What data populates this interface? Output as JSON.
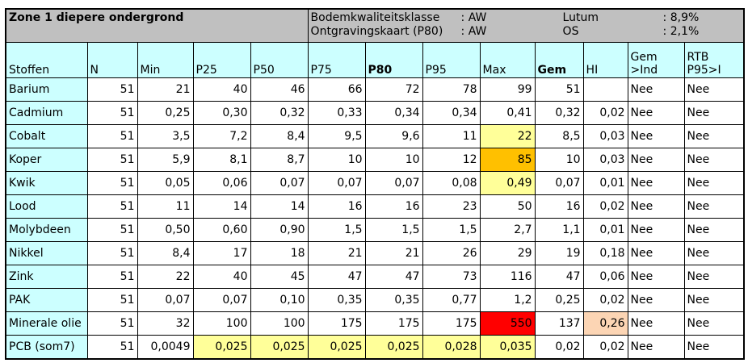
{
  "title": "Zone 1 diepere ondergrond",
  "meta": [
    {
      "label": "Bodemkwaliteitsklasse",
      "value": ": AW",
      "label2": "Lutum",
      "value2": ": 8,9%"
    },
    {
      "label": "Ontgravingskaart (P80)",
      "value": ": AW",
      "label2": "OS",
      "value2": ": 2,1%"
    }
  ],
  "headers": [
    "Stoffen",
    "N",
    "Min",
    "P25",
    "P50",
    "P75",
    "P80",
    "P95",
    "Max",
    "Gem",
    "HI",
    "Gem\n>Ind",
    "RTB\nP95>I"
  ],
  "rows": [
    [
      "Barium",
      "51",
      "21",
      "40",
      "46",
      "66",
      "72",
      "78",
      "99",
      "51",
      "",
      "Nee",
      "Nee"
    ],
    [
      "Cadmium",
      "51",
      "0,25",
      "0,30",
      "0,32",
      "0,33",
      "0,34",
      "0,34",
      "0,41",
      "0,32",
      "0,02",
      "Nee",
      "Nee"
    ],
    [
      "Cobalt",
      "51",
      "3,5",
      "7,2",
      "8,4",
      "9,5",
      "9,6",
      "11",
      "22",
      "8,5",
      "0,03",
      "Nee",
      "Nee"
    ],
    [
      "Koper",
      "51",
      "5,9",
      "8,1",
      "8,7",
      "10",
      "10",
      "12",
      "85",
      "10",
      "0,03",
      "Nee",
      "Nee"
    ],
    [
      "Kwik",
      "51",
      "0,05",
      "0,06",
      "0,07",
      "0,07",
      "0,07",
      "0,08",
      "0,49",
      "0,07",
      "0,01",
      "Nee",
      "Nee"
    ],
    [
      "Lood",
      "51",
      "11",
      "14",
      "14",
      "16",
      "16",
      "23",
      "50",
      "16",
      "0,02",
      "Nee",
      "Nee"
    ],
    [
      "Molybdeen",
      "51",
      "0,50",
      "0,60",
      "0,90",
      "1,5",
      "1,5",
      "1,5",
      "2,7",
      "1,1",
      "0,01",
      "Nee",
      "Nee"
    ],
    [
      "Nikkel",
      "51",
      "8,4",
      "17",
      "18",
      "21",
      "21",
      "26",
      "29",
      "19",
      "0,18",
      "Nee",
      "Nee"
    ],
    [
      "Zink",
      "51",
      "22",
      "40",
      "45",
      "47",
      "47",
      "73",
      "116",
      "47",
      "0,06",
      "Nee",
      "Nee"
    ],
    [
      "PAK",
      "51",
      "0,07",
      "0,07",
      "0,10",
      "0,35",
      "0,35",
      "0,77",
      "1,2",
      "0,25",
      "0,02",
      "Nee",
      "Nee"
    ],
    [
      "Minerale olie",
      "51",
      "32",
      "100",
      "100",
      "175",
      "175",
      "175",
      "550",
      "137",
      "0,26",
      "Nee",
      "Nee"
    ],
    [
      "PCB (som7)",
      "51",
      "0,0049",
      "0,025",
      "0,025",
      "0,025",
      "0,025",
      "0,028",
      "0,035",
      "0,02",
      "0,02",
      "Nee",
      "Nee"
    ]
  ],
  "highlight_colors": {
    "light_yellow": "#ffff99",
    "orange": "#ffc000",
    "red": "#ff0000",
    "peach": "#fcd5b4",
    "header_cyan": "#ccffff",
    "title_grey": "#c0c0c0"
  }
}
